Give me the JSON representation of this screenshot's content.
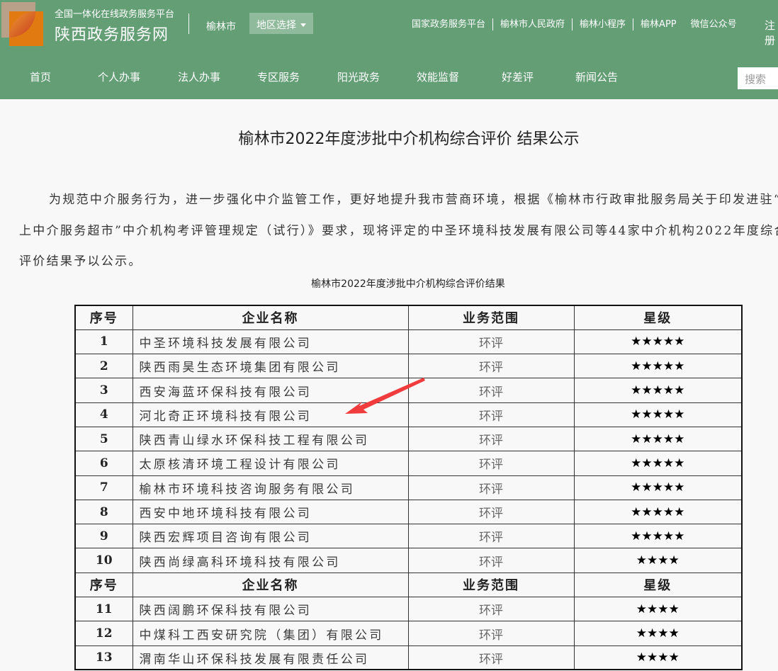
{
  "header": {
    "subtitle": "全国一体化在线政务服务平台",
    "site_name": "陕西政务服务网",
    "city": "榆林市",
    "region_select": "地区选择",
    "top_links": [
      "国家政务服务平台",
      "榆林市人民政府",
      "榆林小程序",
      "榆林APP",
      "微信公众号"
    ],
    "register": "注册",
    "nav": [
      "首页",
      "个人办事",
      "法人办事",
      "专区服务",
      "阳光政务",
      "效能监督",
      "好差评",
      "新闻公告"
    ],
    "search_placeholder": "搜索",
    "colors": {
      "header_bg": "#639e75"
    }
  },
  "article": {
    "title": "榆林市2022年度涉批中介机构综合评价 结果公示",
    "paragraph": "为规范中介服务行为，进一步强化中介监管工作，更好地提升我市营商环境，根据《榆林市行政审批服务局关于印发进驻“网上中介服务超市”中介机构考评管理规定（试行）》要求，现将评定的中圣环境科技发展有限公司等44家中介机构2022年度综合评价结果予以公示。",
    "table_caption": "榆林市2022年度涉批中介机构综合评价结果",
    "table": {
      "headers": [
        "序号",
        "企业名称",
        "业务范围",
        "星级"
      ],
      "rows": [
        [
          "1",
          "中圣环境科技发展有限公司",
          "环评",
          "★★★★★"
        ],
        [
          "2",
          "陕西雨昊生态环境集团有限公司",
          "环评",
          "★★★★★"
        ],
        [
          "3",
          "西安海蓝环保科技有限公司",
          "环评",
          "★★★★★"
        ],
        [
          "4",
          "河北奇正环境科技有限公司",
          "环评",
          "★★★★★"
        ],
        [
          "5",
          "陕西青山绿水环保科技工程有限公司",
          "环评",
          "★★★★★"
        ],
        [
          "6",
          "太原核清环境工程设计有限公司",
          "环评",
          "★★★★★"
        ],
        [
          "7",
          "榆林市环境科技咨询服务有限公司",
          "环评",
          "★★★★★"
        ],
        [
          "8",
          "西安中地环境科技有限公司",
          "环评",
          "★★★★★"
        ],
        [
          "9",
          "陕西宏辉项目咨询有限公司",
          "环评",
          "★★★★★"
        ],
        [
          "10",
          "陕西尚绿高科环境科技有限公司",
          "环评",
          "★★★★"
        ],
        [
          "header"
        ],
        [
          "11",
          "陕西阔鹏环保科技有限公司",
          "环评",
          "★★★★"
        ],
        [
          "12",
          "中煤科工西安研究院（集团）有限公司",
          "环评",
          "★★★★"
        ],
        [
          "13",
          "渭南华山环保科技发展有限责任公司",
          "环评",
          "★★★★"
        ]
      ]
    }
  },
  "annotation": {
    "arrow_color": "#f03c3c"
  }
}
